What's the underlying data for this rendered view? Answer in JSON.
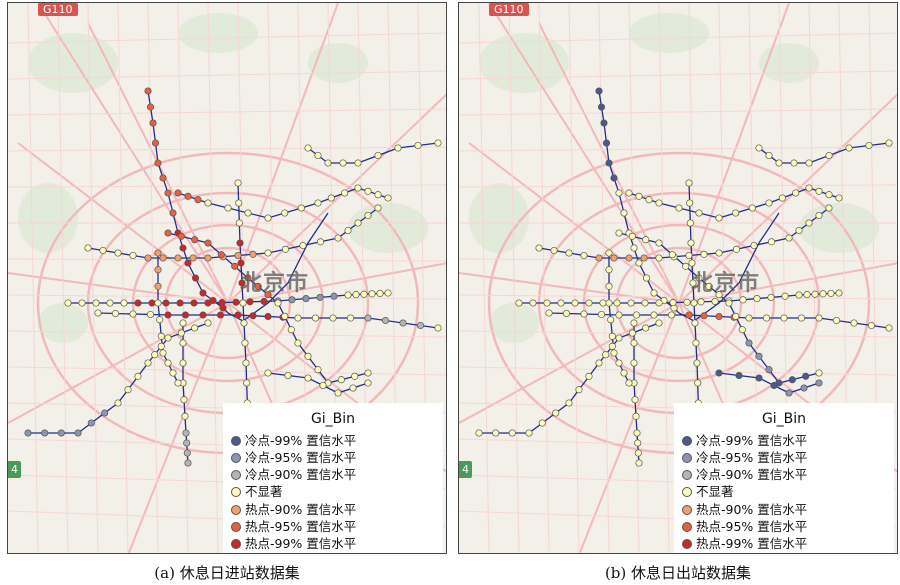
{
  "panels": [
    {
      "id": "a",
      "caption": "(a) 休息日进站数据集",
      "city_label": "北京市",
      "highway_shield": "G110",
      "highway_shield_small": "4"
    },
    {
      "id": "b",
      "caption": "(b) 休息日出站数据集",
      "city_label": "北京市",
      "highway_shield": "G110",
      "highway_shield_small": "4"
    }
  ],
  "legend": {
    "title": "Gi_Bin",
    "items": [
      {
        "label": "冷点-99% 置信水平",
        "color": "#4a5a8c"
      },
      {
        "label": "冷点-95% 置信水平",
        "color": "#8a94b4"
      },
      {
        "label": "冷点-90% 置信水平",
        "color": "#b4b4b4"
      },
      {
        "label": "不显著",
        "color": "#fdfdb8"
      },
      {
        "label": "热点-90% 置信水平",
        "color": "#f2a06a"
      },
      {
        "label": "热点-95% 置信水平",
        "color": "#e8603c"
      },
      {
        "label": "热点-99% 置信水平",
        "color": "#c82828"
      }
    ]
  },
  "colors": {
    "metro_line": "#1f2f8f",
    "road_major": "#f3b8b8",
    "road_minor": "#f7d6d6",
    "background": "#f3efe9",
    "green_area": "#dde8d4"
  }
}
